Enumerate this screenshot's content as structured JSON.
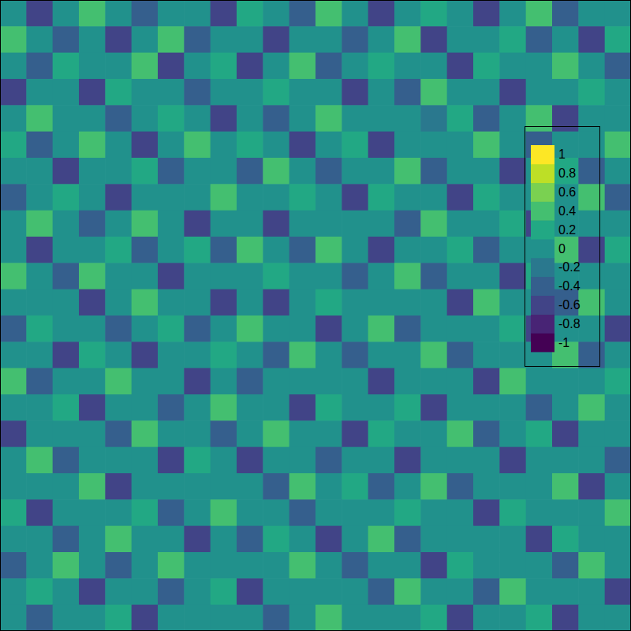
{
  "chart_data": {
    "type": "heatmap",
    "cells": [
      [
        0,
        -0.6,
        0,
        0.4,
        0,
        -0.4,
        0,
        0,
        -0.6,
        0.2,
        0,
        -0.4,
        0.4,
        0,
        -0.6,
        0,
        0.2,
        0,
        -0.6,
        0,
        0.4,
        -0.4,
        0,
        0
      ],
      [
        0.4,
        0,
        -0.4,
        0,
        -0.6,
        0,
        0.4,
        -0.4,
        0,
        0,
        -0.6,
        0,
        0,
        -0.4,
        0,
        0.4,
        -0.6,
        0,
        0,
        0.2,
        -0.4,
        0,
        -0.6,
        0.2
      ],
      [
        0,
        -0.4,
        0.2,
        0,
        0,
        0.4,
        -0.6,
        0,
        0.2,
        -0.6,
        0,
        0.4,
        -0.4,
        0,
        0.2,
        0,
        0,
        -0.6,
        0.2,
        0,
        0,
        0.4,
        0,
        -0.4
      ],
      [
        -0.6,
        0,
        0,
        -0.6,
        0.2,
        0,
        0,
        -0.4,
        0,
        0,
        0.2,
        0,
        0,
        -0.6,
        0,
        -0.4,
        0.4,
        0,
        0,
        -0.6,
        0,
        0,
        0.2,
        0
      ],
      [
        0,
        0.4,
        0,
        0,
        -0.4,
        0,
        0.2,
        0,
        -0.6,
        0,
        -0.4,
        0,
        0.4,
        0,
        0,
        0,
        -0.2,
        0.2,
        -0.4,
        0,
        0.4,
        -0.6,
        0,
        0
      ],
      [
        0.2,
        -0.4,
        0,
        0.4,
        0,
        -0.6,
        0,
        0.4,
        0,
        0.2,
        0,
        -0.6,
        0,
        0.2,
        -0.6,
        0,
        0,
        0,
        0.4,
        0,
        -0.4,
        0,
        0,
        0.4
      ],
      [
        0,
        0,
        -0.6,
        0,
        0,
        0.2,
        -0.4,
        0,
        0,
        -0.4,
        0.4,
        0,
        -0.4,
        0,
        0,
        0.4,
        -0.4,
        0,
        0,
        -0.6,
        0,
        0.2,
        -0.4,
        0
      ],
      [
        -0.4,
        0,
        0.2,
        0,
        -0.6,
        0,
        0,
        0,
        0.4,
        0,
        0,
        0.2,
        0,
        -0.6,
        0.2,
        0,
        0,
        -0.6,
        0.2,
        0,
        0,
        0,
        0.4,
        -0.4
      ],
      [
        0,
        0.4,
        0,
        -0.4,
        0,
        0.4,
        0,
        -0.6,
        0,
        0,
        -0.6,
        0,
        0,
        0,
        0,
        -0.4,
        0.4,
        0,
        0,
        0.2,
        -0.6,
        0,
        0,
        0
      ],
      [
        0,
        -0.6,
        0,
        0,
        0.2,
        -0.4,
        0,
        0.2,
        -0.4,
        0.4,
        0,
        -0.4,
        0.4,
        0,
        -0.6,
        0,
        0,
        0.2,
        -0.4,
        0,
        0,
        0.4,
        -0.6,
        0.2
      ],
      [
        0.4,
        0,
        -0.4,
        0.4,
        0,
        0,
        -0.6,
        0,
        0,
        0,
        0.2,
        0,
        0,
        -0.4,
        0,
        0.4,
        -0.4,
        0,
        0,
        -0.6,
        0.2,
        0,
        0,
        0
      ],
      [
        0,
        0,
        0,
        -0.6,
        0,
        0.4,
        0,
        0,
        -0.6,
        0,
        -0.6,
        0,
        0.2,
        0,
        0,
        0,
        0,
        -0.6,
        0.4,
        0,
        0,
        -0.4,
        0.4,
        0
      ],
      [
        -0.4,
        0.2,
        0,
        0,
        -0.4,
        0,
        0.2,
        -0.4,
        0,
        0.4,
        0,
        0,
        -0.6,
        0,
        0.4,
        -0.4,
        0,
        0,
        0,
        0.2,
        -0.6,
        0,
        0,
        -0.6
      ],
      [
        0,
        0,
        -0.6,
        0.2,
        0,
        -0.6,
        0,
        0,
        0.2,
        0,
        -0.4,
        0.4,
        0,
        -0.4,
        0,
        0,
        0.4,
        -0.4,
        0,
        0,
        0,
        0.4,
        -0.4,
        0
      ],
      [
        0.4,
        -0.4,
        0,
        0,
        0.4,
        0,
        0,
        -0.6,
        0,
        -0.4,
        0,
        0,
        0,
        0,
        -0.6,
        0,
        0,
        0,
        -0.6,
        0.4,
        0,
        0,
        0,
        0.2
      ],
      [
        0,
        0,
        0.2,
        -0.6,
        0,
        0,
        -0.4,
        0,
        0.4,
        0,
        0,
        -0.6,
        0.2,
        0,
        0,
        0.2,
        -0.6,
        0,
        0,
        0,
        -0.4,
        0,
        0.4,
        0
      ],
      [
        -0.6,
        0,
        0,
        0,
        -0.4,
        0.4,
        0,
        0,
        -0.4,
        0,
        0.4,
        0,
        0,
        -0.6,
        0.2,
        0,
        0,
        0.4,
        -0.4,
        0,
        0.2,
        -0.6,
        0,
        0
      ],
      [
        0,
        0.4,
        -0.4,
        0,
        0,
        0,
        -0.6,
        0.2,
        0,
        -0.6,
        0,
        0,
        -0.4,
        0,
        0,
        -0.6,
        0,
        0,
        0,
        -0.6,
        0,
        0,
        0,
        -0.4
      ],
      [
        0,
        0,
        0,
        0.4,
        -0.6,
        0,
        0,
        0,
        0,
        0,
        -0.4,
        0.4,
        0,
        0.2,
        -0.4,
        0,
        0.4,
        -0.4,
        0,
        0,
        0,
        0.4,
        -0.6,
        0
      ],
      [
        0.2,
        -0.6,
        0,
        0,
        0,
        0.2,
        -0.4,
        0,
        0.4,
        0,
        0,
        -0.4,
        0,
        0,
        0,
        0.2,
        0,
        0,
        -0.6,
        0.2,
        0,
        0,
        0,
        0.4
      ],
      [
        0,
        0,
        -0.4,
        0,
        0.4,
        0,
        0,
        -0.6,
        0,
        -0.4,
        0.2,
        0,
        -0.6,
        0,
        0.4,
        -0.4,
        0,
        0,
        0,
        0,
        -0.6,
        0.2,
        0,
        0
      ],
      [
        -0.4,
        0,
        0.4,
        0,
        -0.4,
        0,
        0.4,
        0,
        0,
        0,
        0,
        0.4,
        0,
        -0.4,
        0,
        0,
        -0.6,
        0.2,
        0,
        0,
        0,
        -0.4,
        0.4,
        0
      ],
      [
        0,
        0.2,
        0,
        -0.6,
        0,
        0,
        -0.4,
        0,
        0.2,
        -0.6,
        0,
        0,
        0,
        0,
        -0.4,
        0.4,
        0,
        0,
        -0.4,
        0.4,
        0,
        0,
        0,
        -0.6
      ],
      [
        0,
        -0.4,
        0,
        0,
        0.2,
        -0.6,
        0,
        0,
        0,
        0,
        -0.4,
        0,
        0.4,
        0,
        0,
        0,
        0.2,
        -0.6,
        0,
        0,
        0.2,
        -0.6,
        0,
        0
      ]
    ],
    "zlim": [
      -1.1,
      1.1
    ],
    "zticks": [
      -1,
      -0.8,
      -0.6,
      -0.4,
      -0.2,
      0,
      0.2,
      0.4,
      0.6,
      0.8,
      1
    ],
    "colors": [
      "#440154",
      "#482475",
      "#414487",
      "#355f8d",
      "#2a788e",
      "#21918c",
      "#22a884",
      "#44bf70",
      "#7ad151",
      "#bddf26",
      "#fde725"
    ]
  }
}
